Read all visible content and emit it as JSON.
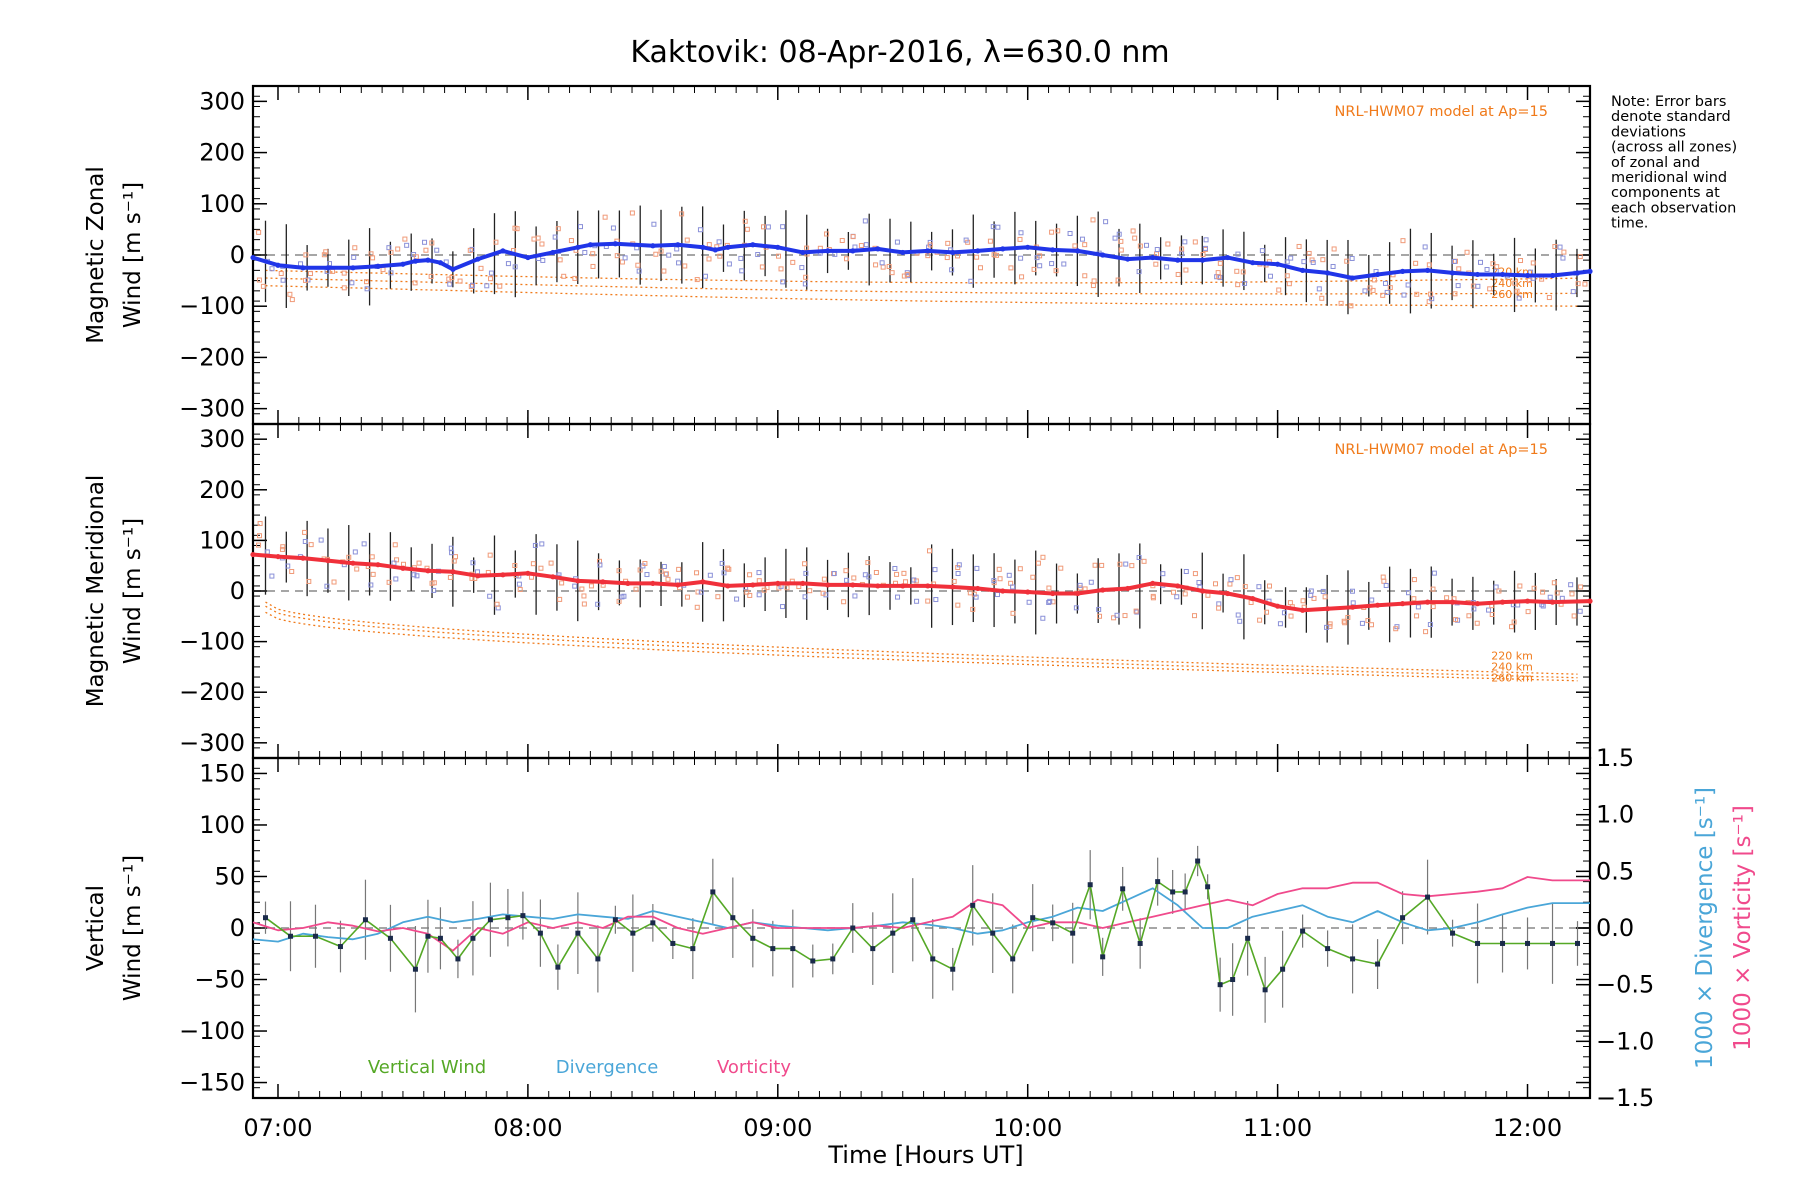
{
  "title": "Kaktovik: 08-Apr-2016, λ=630.0 nm",
  "note_lines": [
    "Note: Error bars",
    "denote standard",
    "deviations",
    "(across all zones)",
    "of zonal and",
    "meridional wind",
    "components at",
    "each observation",
    "time."
  ],
  "model_label": "NRL-HWM07 model at Ap=15",
  "km_labels": [
    "220 km",
    "240 km",
    "260 km"
  ],
  "xlabel": "Time [Hours UT]",
  "colors": {
    "zonal": "#2035e8",
    "meridional": "#f0303a",
    "vertical": "#55a826",
    "divergence": "#4aa6d8",
    "vorticity": "#f04a8c",
    "model": "#f07a1a",
    "sample_blue": "#8a90d8",
    "sample_orange": "#f09a78",
    "errorbar": "#222222",
    "zero_line": "#888888"
  },
  "chart_data": [
    {
      "type": "line",
      "panel": "zonal",
      "ylabel_lines": [
        "Magnetic Zonal",
        "Wind [m s⁻¹]"
      ],
      "xlim": [
        6.9,
        12.25
      ],
      "ylim": [
        -330,
        330
      ],
      "x_ticks": [
        "07:00",
        "08:00",
        "09:00",
        "10:00",
        "11:00",
        "12:00"
      ],
      "y_ticks": [
        -300,
        -200,
        -100,
        0,
        100,
        200,
        300
      ],
      "model_label": "NRL-HWM07 model at Ap=15",
      "series": [
        {
          "name": "",
          "x": [
            6.9,
            7.0,
            7.1,
            7.2,
            7.3,
            7.4,
            7.5,
            7.55,
            7.6,
            7.65,
            7.7,
            7.8,
            7.9,
            8.0,
            8.1,
            8.2,
            8.25,
            8.35,
            8.5,
            8.6,
            8.7,
            8.75,
            8.8,
            8.9,
            9.0,
            9.1,
            9.2,
            9.3,
            9.4,
            9.5,
            9.6,
            9.7,
            9.8,
            9.9,
            10.0,
            10.1,
            10.2,
            10.3,
            10.4,
            10.5,
            10.6,
            10.7,
            10.8,
            10.9,
            11.0,
            11.1,
            11.2,
            11.3,
            11.4,
            11.5,
            11.6,
            11.7,
            11.8,
            11.9,
            12.0,
            12.1,
            12.2,
            12.25
          ],
          "y": [
            -5,
            -20,
            -25,
            -25,
            -25,
            -22,
            -18,
            -12,
            -10,
            -15,
            -28,
            -8,
            8,
            -5,
            5,
            15,
            20,
            22,
            18,
            20,
            15,
            10,
            15,
            20,
            15,
            5,
            8,
            8,
            12,
            5,
            8,
            5,
            8,
            12,
            15,
            10,
            8,
            0,
            -8,
            -5,
            -10,
            -10,
            -5,
            -15,
            -18,
            -30,
            -35,
            -45,
            -38,
            -32,
            -30,
            -35,
            -38,
            -38,
            -40,
            -40,
            -35,
            -32
          ]
        }
      ]
    },
    {
      "type": "line",
      "panel": "meridional",
      "ylabel_lines": [
        "Magnetic Meridional",
        "Wind [m s⁻¹]"
      ],
      "xlim": [
        6.9,
        12.25
      ],
      "ylim": [
        -330,
        330
      ],
      "x_ticks": [
        "07:00",
        "08:00",
        "09:00",
        "10:00",
        "11:00",
        "12:00"
      ],
      "y_ticks": [
        -300,
        -200,
        -100,
        0,
        100,
        200,
        300
      ],
      "model_label": "NRL-HWM07 model at Ap=15",
      "series": [
        {
          "name": "",
          "x": [
            6.9,
            7.0,
            7.1,
            7.2,
            7.3,
            7.4,
            7.5,
            7.6,
            7.7,
            7.8,
            7.9,
            8.0,
            8.1,
            8.2,
            8.3,
            8.4,
            8.5,
            8.6,
            8.7,
            8.8,
            8.9,
            9.0,
            9.1,
            9.2,
            9.3,
            9.4,
            9.5,
            9.6,
            9.7,
            9.8,
            9.9,
            10.0,
            10.1,
            10.2,
            10.3,
            10.4,
            10.5,
            10.6,
            10.7,
            10.8,
            10.9,
            11.0,
            11.1,
            11.2,
            11.3,
            11.4,
            11.5,
            11.6,
            11.7,
            11.8,
            11.9,
            12.0,
            12.1,
            12.25
          ],
          "y": [
            72,
            68,
            65,
            60,
            55,
            52,
            45,
            40,
            38,
            30,
            32,
            35,
            28,
            20,
            18,
            15,
            15,
            12,
            18,
            10,
            12,
            15,
            15,
            12,
            12,
            10,
            10,
            10,
            8,
            5,
            0,
            -2,
            -5,
            -5,
            2,
            5,
            15,
            10,
            0,
            -5,
            -15,
            -30,
            -38,
            -35,
            -32,
            -28,
            -25,
            -22,
            -22,
            -25,
            -22,
            -20,
            -22,
            -20
          ]
        }
      ]
    },
    {
      "type": "line",
      "panel": "vertical",
      "ylabel_lines": [
        "Vertical",
        "Wind [m s⁻¹]"
      ],
      "y2label_div": "1000 × Divergence [s⁻¹]",
      "y2label_vort": "1000 × Vorticity [s⁻¹]",
      "xlim": [
        6.9,
        12.25
      ],
      "ylim": [
        -165,
        165
      ],
      "y2lim": [
        -1.5,
        1.5
      ],
      "x_ticks": [
        "07:00",
        "08:00",
        "09:00",
        "10:00",
        "11:00",
        "12:00"
      ],
      "y_ticks": [
        -150,
        -100,
        -50,
        0,
        50,
        100,
        150
      ],
      "y2_ticks": [
        "-1.5",
        "-1.0",
        "-0.5",
        "0.0",
        "0.5",
        "1.0",
        "1.5"
      ],
      "xlabel": "Time [Hours UT]",
      "series": [
        {
          "name": "Vertical Wind",
          "x": [
            6.95,
            7.05,
            7.15,
            7.25,
            7.35,
            7.45,
            7.55,
            7.6,
            7.65,
            7.72,
            7.78,
            7.85,
            7.92,
            7.98,
            8.05,
            8.12,
            8.2,
            8.28,
            8.35,
            8.42,
            8.5,
            8.58,
            8.66,
            8.74,
            8.82,
            8.9,
            8.98,
            9.06,
            9.14,
            9.22,
            9.3,
            9.38,
            9.46,
            9.54,
            9.62,
            9.7,
            9.78,
            9.86,
            9.94,
            10.02,
            10.1,
            10.18,
            10.25,
            10.3,
            10.38,
            10.45,
            10.52,
            10.58,
            10.63,
            10.68,
            10.72,
            10.77,
            10.82,
            10.88,
            10.95,
            11.02,
            11.1,
            11.2,
            11.3,
            11.4,
            11.5,
            11.6,
            11.7,
            11.8,
            11.9,
            12.0,
            12.1,
            12.2
          ],
          "y": [
            10,
            -8,
            -8,
            -18,
            8,
            -10,
            -40,
            -8,
            -10,
            -30,
            -10,
            8,
            10,
            12,
            -5,
            -38,
            -5,
            -30,
            8,
            -5,
            5,
            -15,
            -20,
            35,
            10,
            -10,
            -20,
            -20,
            -32,
            -30,
            0,
            -20,
            -5,
            8,
            -30,
            -40,
            22,
            -5,
            -30,
            10,
            5,
            -5,
            42,
            -28,
            38,
            -15,
            45,
            35,
            35,
            65,
            40,
            -55,
            -50,
            -10,
            -60,
            -40,
            -3,
            -20,
            -30,
            -35,
            10,
            30,
            -5,
            -15,
            -15,
            -15,
            -15,
            -15
          ]
        },
        {
          "name": "Divergence",
          "x": [
            6.9,
            7.0,
            7.1,
            7.2,
            7.3,
            7.4,
            7.5,
            7.6,
            7.7,
            7.8,
            7.9,
            8.0,
            8.1,
            8.2,
            8.3,
            8.4,
            8.5,
            8.6,
            8.7,
            8.8,
            8.9,
            9.0,
            9.1,
            9.2,
            9.3,
            9.4,
            9.5,
            9.6,
            9.7,
            9.8,
            9.9,
            10.0,
            10.1,
            10.2,
            10.3,
            10.4,
            10.5,
            10.6,
            10.7,
            10.8,
            10.9,
            11.0,
            11.1,
            11.2,
            11.3,
            11.4,
            11.5,
            11.6,
            11.7,
            11.8,
            11.9,
            12.0,
            12.1,
            12.25
          ],
          "y": [
            -0.1,
            -0.12,
            -0.05,
            -0.08,
            -0.1,
            -0.05,
            0.05,
            0.1,
            0.05,
            0.08,
            0.12,
            0.1,
            0.08,
            0.12,
            0.1,
            0.08,
            0.15,
            0.1,
            0.05,
            0.0,
            0.05,
            0.02,
            0.0,
            -0.02,
            0.0,
            0.02,
            0.05,
            0.03,
            0.0,
            -0.05,
            -0.02,
            0.05,
            0.1,
            0.18,
            0.15,
            0.25,
            0.35,
            0.2,
            0.0,
            0.0,
            0.1,
            0.15,
            0.2,
            0.1,
            0.05,
            0.15,
            0.05,
            -0.02,
            0.0,
            0.05,
            0.12,
            0.18,
            0.22,
            0.22
          ]
        },
        {
          "name": "Vorticity",
          "x": [
            6.9,
            7.0,
            7.1,
            7.2,
            7.3,
            7.4,
            7.5,
            7.6,
            7.7,
            7.8,
            7.9,
            8.0,
            8.1,
            8.2,
            8.3,
            8.4,
            8.5,
            8.6,
            8.7,
            8.8,
            8.9,
            9.0,
            9.1,
            9.2,
            9.3,
            9.4,
            9.5,
            9.6,
            9.7,
            9.8,
            9.9,
            10.0,
            10.1,
            10.2,
            10.3,
            10.4,
            10.5,
            10.6,
            10.7,
            10.8,
            10.9,
            11.0,
            11.1,
            11.2,
            11.3,
            11.4,
            11.5,
            11.6,
            11.7,
            11.8,
            11.9,
            12.0,
            12.1,
            12.25
          ],
          "y": [
            0.05,
            -0.02,
            0.0,
            0.05,
            0.02,
            -0.03,
            0.0,
            -0.05,
            -0.2,
            0.0,
            -0.05,
            0.05,
            0.0,
            0.05,
            0.0,
            0.1,
            0.1,
            0.0,
            -0.05,
            0.0,
            0.05,
            0.0,
            0.0,
            0.0,
            0.0,
            0.02,
            0.0,
            0.05,
            0.1,
            0.25,
            0.2,
            0.0,
            0.05,
            0.05,
            0.0,
            0.05,
            0.1,
            0.15,
            0.2,
            0.25,
            0.2,
            0.3,
            0.35,
            0.35,
            0.4,
            0.4,
            0.3,
            0.28,
            0.3,
            0.32,
            0.35,
            0.45,
            0.42,
            0.42
          ]
        }
      ]
    }
  ]
}
